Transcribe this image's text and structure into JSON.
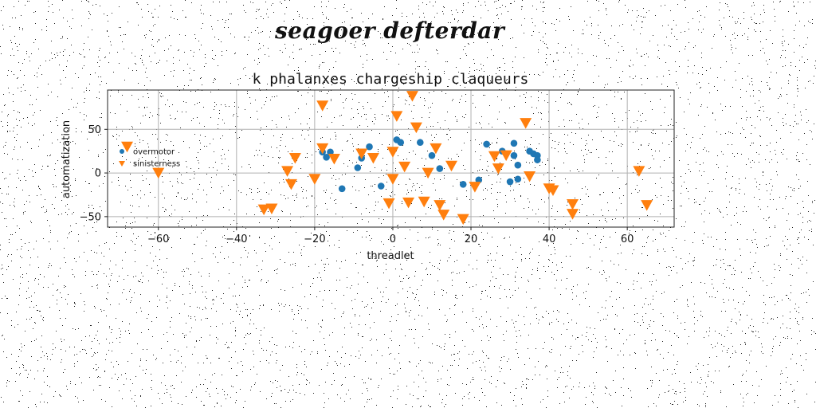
{
  "header": {
    "supertitle": "seagoer defterdar"
  },
  "chart_data": {
    "type": "scatter",
    "title": "k phalanxes chargeship claqueurs",
    "xlabel": "threadlet",
    "ylabel": "automatization",
    "xlim": [
      -73,
      72
    ],
    "ylim": [
      -62,
      95
    ],
    "xticks": [
      -60,
      -40,
      -20,
      0,
      20,
      40,
      60
    ],
    "yticks": [
      -50,
      0,
      50
    ],
    "xtick_labels": [
      "−60",
      "−40",
      "−20",
      "0",
      "20",
      "40",
      "60"
    ],
    "ytick_labels": [
      "−50",
      "0",
      "50"
    ],
    "grid": true,
    "legend_position": "center-left",
    "series": [
      {
        "name": "overmotor",
        "marker": "circle",
        "color": "#1f77b4",
        "points": [
          [
            -18,
            24
          ],
          [
            -17,
            18
          ],
          [
            -16,
            24
          ],
          [
            -13,
            -18
          ],
          [
            -9,
            6
          ],
          [
            -8,
            17
          ],
          [
            -6,
            30
          ],
          [
            -3,
            -15
          ],
          [
            1,
            38
          ],
          [
            2,
            35
          ],
          [
            7,
            35
          ],
          [
            10,
            20
          ],
          [
            12,
            5
          ],
          [
            18,
            -13
          ],
          [
            22,
            -8
          ],
          [
            24,
            33
          ],
          [
            28,
            25
          ],
          [
            30,
            -10
          ],
          [
            31,
            34
          ],
          [
            31,
            20
          ],
          [
            32,
            9
          ],
          [
            32,
            -7
          ],
          [
            35,
            25
          ],
          [
            36,
            22
          ],
          [
            37,
            20
          ],
          [
            37,
            15
          ]
        ]
      },
      {
        "name": "sinisterness",
        "marker": "triangle-down",
        "color": "#ff7f0e",
        "points": [
          [
            -68,
            30
          ],
          [
            -60,
            0
          ],
          [
            -33,
            -42
          ],
          [
            -31,
            -41
          ],
          [
            -27,
            2
          ],
          [
            -26,
            -13
          ],
          [
            -25,
            17
          ],
          [
            -20,
            -7
          ],
          [
            -18,
            77
          ],
          [
            -18,
            28
          ],
          [
            -15,
            16
          ],
          [
            -8,
            22
          ],
          [
            -5,
            17
          ],
          [
            -1,
            -35
          ],
          [
            0,
            24
          ],
          [
            0,
            -7
          ],
          [
            1,
            65
          ],
          [
            3,
            7
          ],
          [
            4,
            -34
          ],
          [
            5,
            88
          ],
          [
            6,
            52
          ],
          [
            8,
            -33
          ],
          [
            9,
            0
          ],
          [
            11,
            28
          ],
          [
            12,
            -37
          ],
          [
            13,
            -48
          ],
          [
            15,
            8
          ],
          [
            18,
            -53
          ],
          [
            21,
            -16
          ],
          [
            26,
            19
          ],
          [
            27,
            5
          ],
          [
            29,
            20
          ],
          [
            34,
            57
          ],
          [
            35,
            -4
          ],
          [
            40,
            -18
          ],
          [
            41,
            -20
          ],
          [
            46,
            -36
          ],
          [
            46,
            -47
          ],
          [
            63,
            2
          ],
          [
            65,
            -37
          ]
        ]
      }
    ]
  }
}
